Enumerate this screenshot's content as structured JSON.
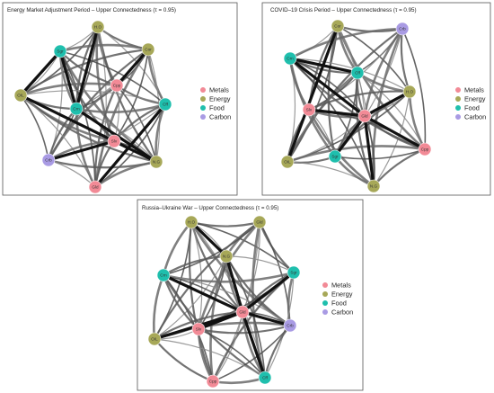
{
  "colors": {
    "Metals": "#f28a96",
    "Energy": "#a7a858",
    "Food": "#1fbfad",
    "Carbon": "#a99be4"
  },
  "legend": [
    {
      "label": "Metals",
      "category": "Metals"
    },
    {
      "label": "Energy",
      "category": "Energy"
    },
    {
      "label": "Food",
      "category": "Food"
    },
    {
      "label": "Carbon",
      "category": "Carbon"
    }
  ],
  "panels": [
    {
      "title": "Energy Market Adjustment Period – Upper Connectedness (τ = 0.95)",
      "nodes": [
        {
          "id": "HO",
          "label": "H.O",
          "category": "Energy"
        },
        {
          "id": "Cor",
          "label": "Cor",
          "category": "Energy"
        },
        {
          "id": "Sgr",
          "label": "Sgr",
          "category": "Food"
        },
        {
          "id": "Cpp",
          "label": "Cpp",
          "category": "Metals"
        },
        {
          "id": "OIL",
          "label": "OIL",
          "category": "Energy"
        },
        {
          "id": "Crn",
          "label": "Crn",
          "category": "Food"
        },
        {
          "id": "Cff",
          "label": "Cff",
          "category": "Food"
        },
        {
          "id": "Slv",
          "label": "Slv",
          "category": "Metals"
        },
        {
          "id": "Crb",
          "label": "Crb",
          "category": "Carbon"
        },
        {
          "id": "NG",
          "label": "N.G",
          "category": "Energy"
        },
        {
          "id": "Gld",
          "label": "Gld",
          "category": "Metals"
        }
      ],
      "edges": [
        [
          "OIL",
          "NG",
          "heavy"
        ],
        [
          "Crn",
          "NG",
          "heavy"
        ],
        [
          "Sgr",
          "Crn",
          "heavy"
        ],
        [
          "Crb",
          "Slv",
          "heavy"
        ],
        [
          "Gld",
          "Cff",
          "heavy"
        ],
        [
          "HO",
          "Crn",
          "heavy"
        ],
        [
          "Cor",
          "Cpp",
          "heavy"
        ],
        [
          "OIL",
          "Sgr",
          "heavy"
        ]
      ]
    },
    {
      "title": "COVID–19 Crisis Period – Upper Connectedness (τ = 0.95)",
      "nodes": [
        {
          "id": "Cor",
          "label": "Cor",
          "category": "Energy"
        },
        {
          "id": "Crb",
          "label": "Crb",
          "category": "Carbon"
        },
        {
          "id": "Crn",
          "label": "Crn",
          "category": "Food"
        },
        {
          "id": "Cff",
          "label": "Cff",
          "category": "Food"
        },
        {
          "id": "HO",
          "label": "H.O",
          "category": "Energy"
        },
        {
          "id": "Slv",
          "label": "Slv",
          "category": "Metals"
        },
        {
          "id": "Gld",
          "label": "Gld",
          "category": "Metals"
        },
        {
          "id": "Cpp",
          "label": "Cpp",
          "category": "Metals"
        },
        {
          "id": "OIL",
          "label": "OIL",
          "category": "Energy"
        },
        {
          "id": "Sgr",
          "label": "Sgr",
          "category": "Food"
        },
        {
          "id": "NG",
          "label": "N.G",
          "category": "Energy"
        }
      ],
      "edges": [
        [
          "Gld",
          "Crn",
          "heavy"
        ],
        [
          "Gld",
          "Slv",
          "heavy"
        ],
        [
          "Gld",
          "Cpp",
          "heavy"
        ],
        [
          "Gld",
          "HO",
          "heavy"
        ],
        [
          "Crn",
          "Cff",
          "heavy"
        ],
        [
          "Gld",
          "Sgr",
          "heavy"
        ],
        [
          "Gld",
          "NG",
          "heavy"
        ],
        [
          "OIL",
          "Cor",
          "heavy"
        ]
      ]
    },
    {
      "title": "Russia–Ukraine War – Upper Connectedness (τ = 0.95)",
      "nodes": [
        {
          "id": "HO",
          "label": "H.O",
          "category": "Energy"
        },
        {
          "id": "Gld",
          "label": "Gld",
          "category": "Energy"
        },
        {
          "id": "NG",
          "label": "N.G",
          "category": "Energy"
        },
        {
          "id": "Crn",
          "label": "Crn",
          "category": "Food"
        },
        {
          "id": "Sgr",
          "label": "Sgr",
          "category": "Food"
        },
        {
          "id": "Gld2",
          "label": "Gld",
          "category": "Metals"
        },
        {
          "id": "Slv",
          "label": "Slv",
          "category": "Metals"
        },
        {
          "id": "Crb",
          "label": "Crb",
          "category": "Carbon"
        },
        {
          "id": "OIL",
          "label": "OIL",
          "category": "Energy"
        },
        {
          "id": "Cpp",
          "label": "Cpp",
          "category": "Metals"
        },
        {
          "id": "Cff",
          "label": "Cff",
          "category": "Food"
        }
      ],
      "edges": [
        [
          "Gld2",
          "Crn",
          "heavy"
        ],
        [
          "Gld2",
          "Slv",
          "heavy"
        ],
        [
          "Gld2",
          "Crb",
          "heavy"
        ],
        [
          "HO",
          "NG",
          "heavy"
        ],
        [
          "NG",
          "Gld2",
          "heavy"
        ],
        [
          "Gld2",
          "Cff",
          "heavy"
        ],
        [
          "OIL",
          "Gld2",
          "heavy"
        ],
        [
          "Sgr",
          "Gld2",
          "heavy"
        ]
      ]
    }
  ]
}
